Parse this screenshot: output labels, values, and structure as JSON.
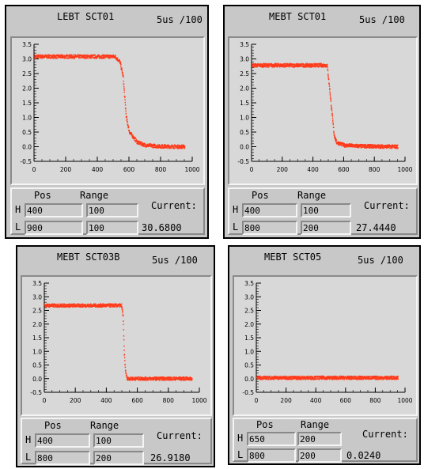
{
  "colors": {
    "trace": "#ff3a1a",
    "panel": "#c8c8c8",
    "plot_bg": "#d8d8d8"
  },
  "panels": [
    {
      "title": "LEBT SCT01",
      "scale": "5us  /100",
      "pos_label": "Pos",
      "range_label": "Range",
      "current_label": "Current:",
      "row_h": "H",
      "row_l": "L",
      "h_pos": "400",
      "h_range": "100",
      "l_pos": "900",
      "l_range": "100",
      "current": "30.6800",
      "chart_data": {
        "type": "scatter",
        "x_ticks": [
          "0",
          "200",
          "400",
          "600",
          "800",
          "1000"
        ],
        "y_ticks": [
          "3.5",
          "3.0",
          "2.5",
          "2.0",
          "1.5",
          "1.0",
          "0.5",
          "0.0",
          "-0.5"
        ],
        "xlim": [
          0,
          1000
        ],
        "ylim": [
          -0.5,
          3.5
        ],
        "profile": [
          [
            0,
            3.08
          ],
          [
            510,
            3.08
          ],
          [
            540,
            2.9
          ],
          [
            560,
            2.4
          ],
          [
            580,
            1.0
          ],
          [
            600,
            0.5
          ],
          [
            650,
            0.15
          ],
          [
            700,
            0.05
          ],
          [
            800,
            0.01
          ],
          [
            950,
            0.0
          ]
        ]
      }
    },
    {
      "title": "MEBT SCT01",
      "scale": "5us  /100",
      "pos_label": "Pos",
      "range_label": "Range",
      "current_label": "Current:",
      "row_h": "H",
      "row_l": "L",
      "h_pos": "400",
      "h_range": "100",
      "l_pos": "800",
      "l_range": "200",
      "current": "27.4440",
      "chart_data": {
        "type": "scatter",
        "x_ticks": [
          "0",
          "200",
          "400",
          "600",
          "800",
          "1000"
        ],
        "y_ticks": [
          "3.5",
          "3.0",
          "2.5",
          "2.0",
          "1.5",
          "1.0",
          "0.5",
          "0.0",
          "-0.5"
        ],
        "xlim": [
          0,
          1000
        ],
        "ylim": [
          -0.5,
          3.5
        ],
        "profile": [
          [
            0,
            2.78
          ],
          [
            490,
            2.78
          ],
          [
            505,
            2.0
          ],
          [
            520,
            1.2
          ],
          [
            535,
            0.4
          ],
          [
            550,
            0.15
          ],
          [
            600,
            0.05
          ],
          [
            700,
            0.02
          ],
          [
            950,
            0.0
          ]
        ]
      }
    },
    {
      "title": "MEBT SCT03B",
      "scale": "5us  /100",
      "pos_label": "Pos",
      "range_label": "Range",
      "current_label": "Current:",
      "row_h": "H",
      "row_l": "L",
      "h_pos": "400",
      "h_range": "100",
      "l_pos": "800",
      "l_range": "200",
      "current": "26.9180",
      "chart_data": {
        "type": "scatter",
        "x_ticks": [
          "0",
          "200",
          "400",
          "600",
          "800",
          "1000"
        ],
        "y_ticks": [
          "3.5",
          "3.0",
          "2.5",
          "2.0",
          "1.5",
          "1.0",
          "0.5",
          "0.0",
          "-0.5"
        ],
        "xlim": [
          0,
          1000
        ],
        "ylim": [
          -0.5,
          3.5
        ],
        "profile": [
          [
            0,
            2.68
          ],
          [
            495,
            2.68
          ],
          [
            505,
            2.3
          ],
          [
            512,
            1.0
          ],
          [
            520,
            0.3
          ],
          [
            530,
            0.0
          ],
          [
            950,
            0.0
          ]
        ]
      }
    },
    {
      "title": "MEBT SCT05",
      "scale": "5us  /100",
      "pos_label": "Pos",
      "range_label": "Range",
      "current_label": "Current:",
      "row_h": "H",
      "row_l": "L",
      "h_pos": "650",
      "h_range": "200",
      "l_pos": "800",
      "l_range": "200",
      "current": "0.0240",
      "chart_data": {
        "type": "scatter",
        "x_ticks": [
          "0",
          "200",
          "400",
          "600",
          "800",
          "1000"
        ],
        "y_ticks": [
          "3.5",
          "3.0",
          "2.5",
          "2.0",
          "1.5",
          "1.0",
          "0.5",
          "0.0",
          "-0.5"
        ],
        "xlim": [
          0,
          1000
        ],
        "ylim": [
          -0.5,
          3.5
        ],
        "profile": [
          [
            0,
            0.03
          ],
          [
            950,
            0.03
          ]
        ]
      }
    }
  ]
}
